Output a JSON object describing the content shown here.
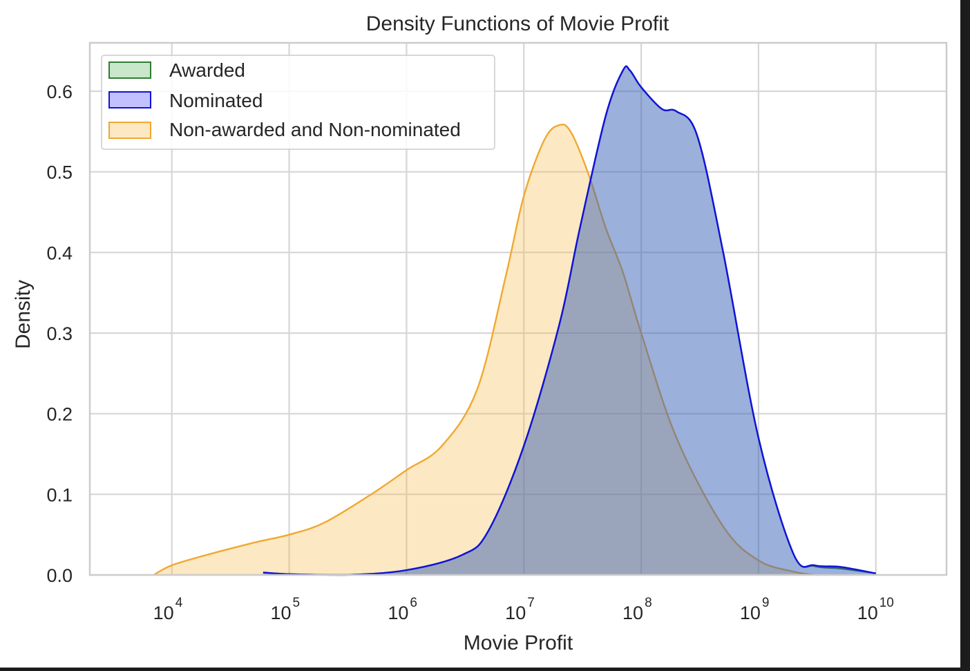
{
  "chart_data": {
    "type": "area",
    "title": "Density Functions of Movie Profit",
    "xlabel": "Movie Profit",
    "ylabel": "Density",
    "x_scale": "log",
    "xlim": [
      2000,
      40000000000
    ],
    "ylim": [
      0,
      0.66
    ],
    "x_ticks": [
      10000,
      100000,
      1000000,
      10000000,
      100000000,
      1000000000,
      10000000000
    ],
    "x_tick_labels": [
      {
        "base": "10",
        "exp": "4"
      },
      {
        "base": "10",
        "exp": "5"
      },
      {
        "base": "10",
        "exp": "6"
      },
      {
        "base": "10",
        "exp": "7"
      },
      {
        "base": "10",
        "exp": "8"
      },
      {
        "base": "10",
        "exp": "9"
      },
      {
        "base": "10",
        "exp": "10"
      }
    ],
    "y_ticks": [
      0.0,
      0.1,
      0.2,
      0.3,
      0.4,
      0.5,
      0.6
    ],
    "y_tick_labels": [
      "0.0",
      "0.1",
      "0.2",
      "0.3",
      "0.4",
      "0.5",
      "0.6"
    ],
    "grid": true,
    "legend_position": "top-left",
    "series": [
      {
        "name": "Awarded",
        "color": "#2e7d32",
        "fill": "#4caf50",
        "fill_opacity": 0.3,
        "x": [
          60000,
          100000,
          300000,
          1000000,
          3000000,
          5000000,
          10000000,
          20000000,
          30000000,
          50000000,
          70000000,
          80000000,
          100000000,
          150000000,
          200000000,
          300000000,
          500000000,
          1000000000,
          2000000000,
          3000000000,
          5000000000,
          10000000000
        ],
        "y": [
          0.003,
          0.001,
          0.0,
          0.006,
          0.025,
          0.055,
          0.16,
          0.31,
          0.43,
          0.57,
          0.626,
          0.626,
          0.605,
          0.578,
          0.575,
          0.545,
          0.4,
          0.17,
          0.025,
          0.011,
          0.008,
          0.002
        ]
      },
      {
        "name": "Nominated",
        "color": "#1111dd",
        "fill": "#3333ff",
        "fill_opacity": 0.3,
        "x": [
          60000,
          100000,
          300000,
          1000000,
          3000000,
          5000000,
          10000000,
          20000000,
          30000000,
          50000000,
          70000000,
          80000000,
          100000000,
          150000000,
          200000000,
          300000000,
          500000000,
          1000000000,
          2000000000,
          3000000000,
          5000000000,
          10000000000
        ],
        "y": [
          0.003,
          0.001,
          0.0,
          0.006,
          0.025,
          0.055,
          0.16,
          0.31,
          0.43,
          0.57,
          0.626,
          0.626,
          0.605,
          0.578,
          0.575,
          0.545,
          0.4,
          0.17,
          0.025,
          0.012,
          0.01,
          0.002
        ]
      },
      {
        "name": "Non-awarded and Non-nominated",
        "color": "#f0a830",
        "fill": "#f5b942",
        "fill_opacity": 0.32,
        "x": [
          7000,
          10000,
          20000,
          50000,
          100000,
          200000,
          500000,
          1000000,
          2000000,
          4000000,
          7000000,
          10000000,
          15000000,
          20000000,
          25000000,
          35000000,
          50000000,
          70000000,
          100000000,
          200000000,
          500000000,
          1000000000,
          2000000000,
          3000000000
        ],
        "y": [
          0.0,
          0.012,
          0.025,
          0.04,
          0.05,
          0.065,
          0.1,
          0.13,
          0.16,
          0.23,
          0.37,
          0.47,
          0.54,
          0.558,
          0.55,
          0.5,
          0.43,
          0.375,
          0.3,
          0.17,
          0.06,
          0.018,
          0.004,
          0.0
        ]
      }
    ]
  }
}
